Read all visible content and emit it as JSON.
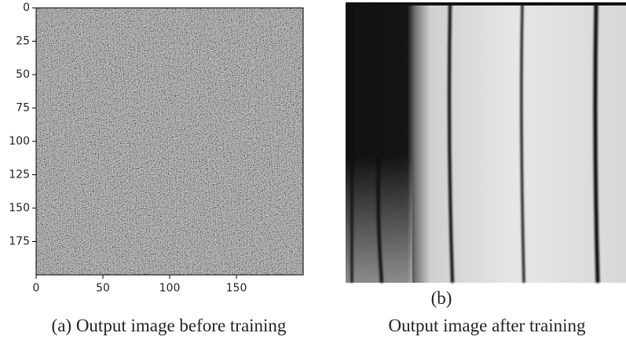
{
  "panels": [
    {
      "type": "image",
      "xlim": [
        0,
        200
      ],
      "ylim": [
        0,
        200
      ],
      "xticks": [
        0,
        50,
        100,
        150
      ],
      "yticks": [
        0,
        25,
        50,
        75,
        100,
        125,
        150,
        175
      ],
      "caption": "(a) Output image before training"
    },
    {
      "type": "image",
      "label": "(b)",
      "caption": "Output image after training"
    }
  ]
}
